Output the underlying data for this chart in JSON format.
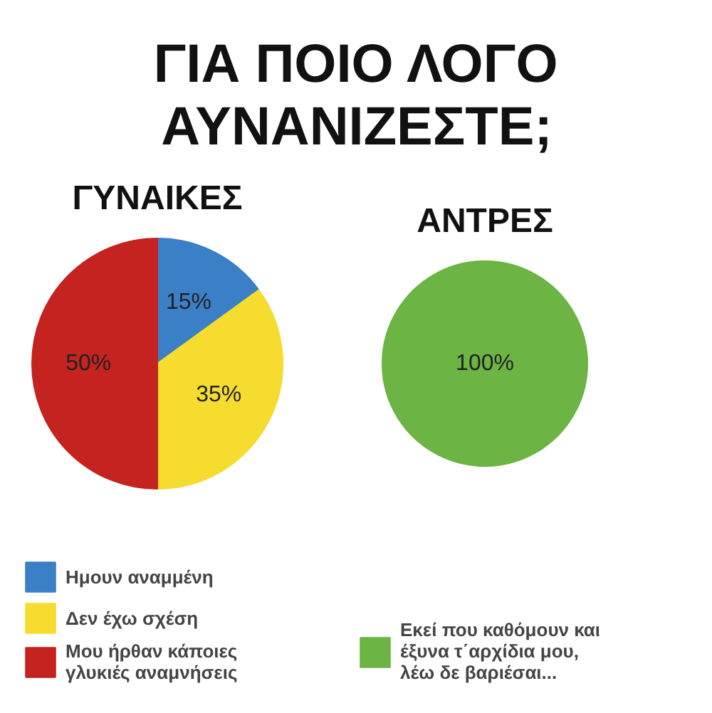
{
  "chart_data": [
    {
      "type": "pie",
      "title": "ΓΥΝΑΙΚΕΣ",
      "annotations": [
        "ΓΙΑ ΠΟΙΟ ΛΟΓΟ ΑΥΝΑΝΙΖΕΣΤΕ;"
      ],
      "categories": [
        "Ημουν αναμμένη",
        "Δεν έχω σχέση",
        "Μου ήρθαν κάποιες γλυκιές αναμνήσεις"
      ],
      "values": [
        15,
        35,
        50
      ],
      "value_labels": [
        "15%",
        "35%",
        "50%"
      ],
      "colors": [
        "#3b7fc6",
        "#f5dc2e",
        "#c42320"
      ],
      "legend": "bottom"
    },
    {
      "type": "pie",
      "title": "ΑΝΤΡΕΣ",
      "categories": [
        "Εκεί που καθόμουν και έξυνα τ΄αρχίδια μου, λέω δε βαριέσαι..."
      ],
      "values": [
        100
      ],
      "value_labels": [
        "100%"
      ],
      "colors": [
        "#6cb443"
      ],
      "legend": "bottom"
    }
  ]
}
